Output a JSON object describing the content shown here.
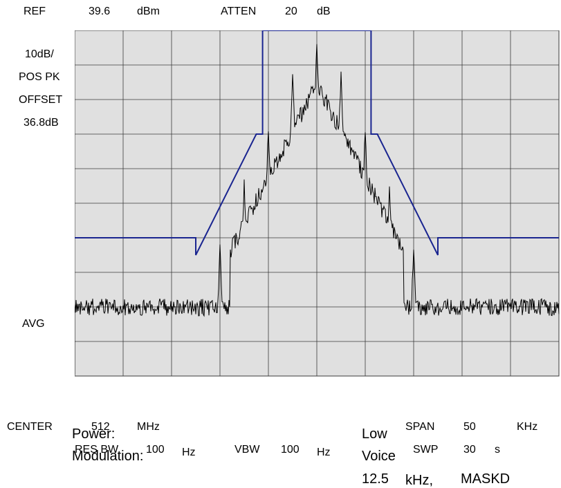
{
  "header": {
    "ref_label": "REF",
    "ref_value": "39.6",
    "ref_unit": "dBm",
    "atten_label": "ATTEN",
    "atten_value": "20",
    "atten_unit": "dB"
  },
  "left_panel": {
    "scale": "10dB/",
    "detector": "POS PK",
    "offset_label": "OFFSET",
    "offset_value": "36.8dB",
    "avg": "AVG"
  },
  "footer": {
    "center_label": "CENTER",
    "center_value": "512",
    "center_unit": "MHz",
    "span_label": "SPAN",
    "span_value": "50",
    "span_unit": "KHz",
    "rbw_label": "RES BW",
    "rbw_value": "100",
    "rbw_unit": "Hz",
    "vbw_label": "VBW",
    "vbw_value": "100",
    "vbw_unit": "Hz",
    "swp_label": "SWP",
    "swp_value": "30",
    "swp_unit": "s"
  },
  "info": {
    "power_label": "Power:",
    "power_value": "Low",
    "modulation_label": "Modulation:",
    "modulation_value": "Voice",
    "channel_value": "12.5",
    "channel_unit": "kHz,",
    "mask": "MASKD"
  },
  "colors": {
    "screen_bg": "#e0e0e0",
    "grid": "#3a3a3a",
    "trace": "#000000",
    "mask": "#1a2590"
  },
  "chart_data": {
    "type": "line",
    "center_mhz": 512,
    "span_khz": 50,
    "ref_level_dbm": 39.6,
    "db_per_div": 10,
    "xlim_khz": [
      -25,
      25
    ],
    "ylim_dbm": [
      -60.4,
      39.6
    ],
    "grid": true,
    "mask": {
      "x_khz": [
        -25,
        -12.5,
        -12.5,
        -6.25,
        -5.6,
        -5.6,
        5.6,
        5.6,
        6.25,
        12.5,
        12.5,
        25
      ],
      "y_dbm": [
        -20.4,
        -20.4,
        -25.4,
        9.6,
        9.6,
        39.6,
        39.6,
        9.6,
        9.6,
        -25.4,
        -20.4,
        -20.4
      ]
    },
    "noise_floor_dbm": -40.5,
    "peaks": [
      {
        "x_khz": -12.5,
        "y_dbm": -47
      },
      {
        "x_khz": -10.0,
        "y_dbm": -21
      },
      {
        "x_khz": -7.5,
        "y_dbm": -3
      },
      {
        "x_khz": -5.0,
        "y_dbm": 13
      },
      {
        "x_khz": -2.5,
        "y_dbm": 29
      },
      {
        "x_khz": 0.0,
        "y_dbm": 37
      },
      {
        "x_khz": 2.5,
        "y_dbm": 29
      },
      {
        "x_khz": 5.0,
        "y_dbm": 13
      },
      {
        "x_khz": 7.5,
        "y_dbm": -3
      },
      {
        "x_khz": 10.0,
        "y_dbm": -21
      },
      {
        "x_khz": 12.5,
        "y_dbm": -47
      }
    ]
  }
}
